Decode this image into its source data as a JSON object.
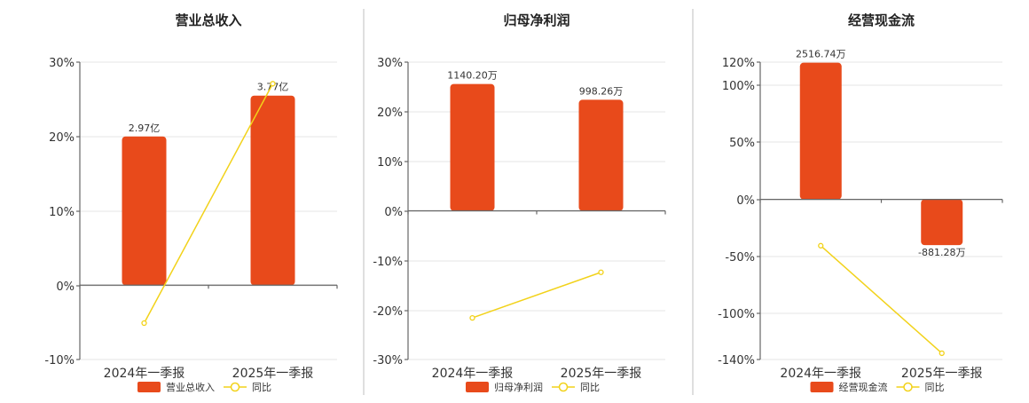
{
  "chart_data": [
    {
      "type": "bar",
      "title": "营业总收入",
      "categories": [
        "2024年一季报",
        "2025年一季报"
      ],
      "y_ticks": [
        "30%",
        "20%",
        "10%",
        "0%",
        "-10%"
      ],
      "ylim": [
        -10,
        30
      ],
      "series": [
        {
          "name": "营业总收入",
          "type": "bar",
          "values": [
            20,
            25.5
          ],
          "labels": [
            "2.97亿",
            "3.77亿"
          ],
          "color": "#e84a1b"
        },
        {
          "name": "同比",
          "type": "line",
          "values": [
            -5.1,
            27.1
          ],
          "color": "#f2d21a"
        }
      ]
    },
    {
      "type": "bar",
      "title": "归母净利润",
      "categories": [
        "2024年一季报",
        "2025年一季报"
      ],
      "y_ticks": [
        "30%",
        "20%",
        "10%",
        "0%",
        "-10%",
        "-20%",
        "-30%"
      ],
      "ylim": [
        -30,
        30
      ],
      "series": [
        {
          "name": "归母净利润",
          "type": "bar",
          "values": [
            25.6,
            22.4
          ],
          "labels": [
            "1140.20万",
            "998.26万"
          ],
          "color": "#e84a1b"
        },
        {
          "name": "同比",
          "type": "line",
          "values": [
            -21.6,
            -12.4
          ],
          "color": "#f2d21a"
        }
      ]
    },
    {
      "type": "bar",
      "title": "经营现金流",
      "categories": [
        "2024年一季报",
        "2025年一季报"
      ],
      "y_ticks": [
        "120%",
        "100%",
        "50%",
        "0%",
        "-50%",
        "-100%",
        "-140%"
      ],
      "ylim": [
        -140,
        120
      ],
      "series": [
        {
          "name": "经营现金流",
          "type": "bar",
          "values": [
            119.5,
            -40
          ],
          "labels": [
            "2516.74万",
            "-881.28万"
          ],
          "color": "#e84a1b"
        },
        {
          "name": "同比",
          "type": "line",
          "values": [
            -40.5,
            -134.5
          ],
          "color": "#f2d21a"
        }
      ]
    }
  ]
}
